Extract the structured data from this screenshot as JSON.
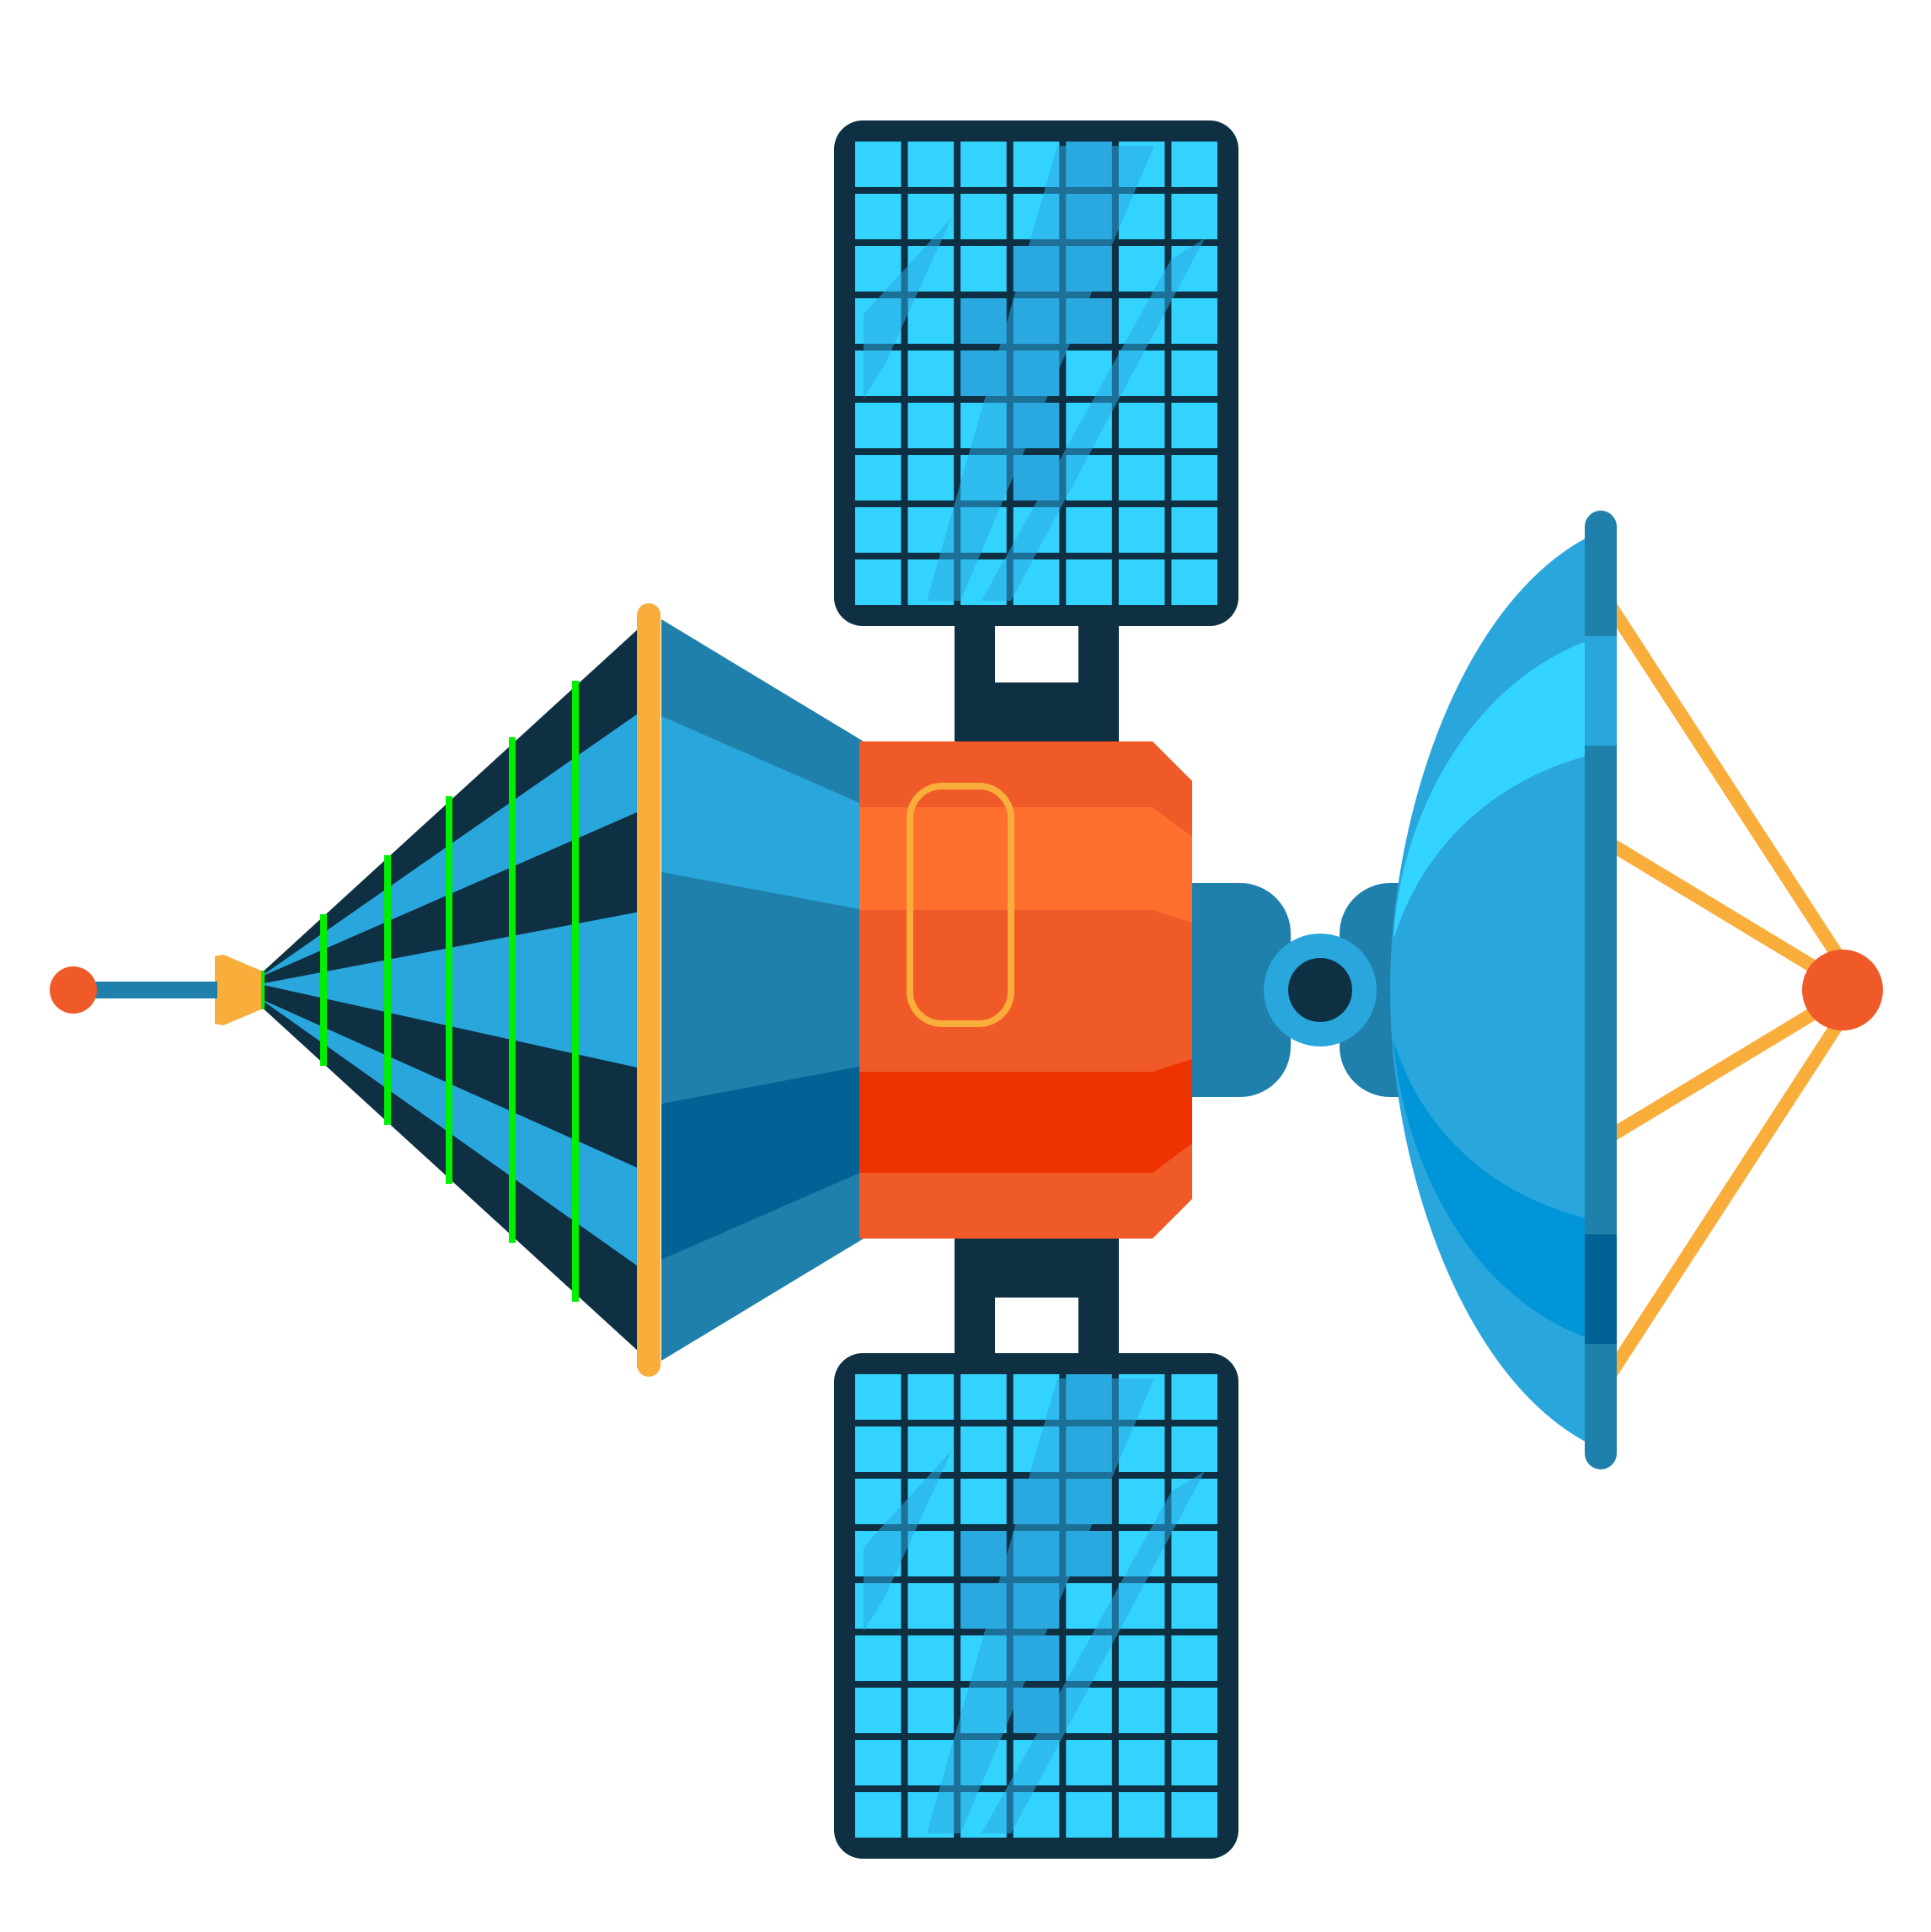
{
  "scene": {
    "subject": "satellite-illustration",
    "background": "#ffffff",
    "panel_grid": {
      "rows": 9,
      "cols": 7
    }
  },
  "colors": {
    "navy": "#0e3042",
    "cell": "#33d3ff",
    "cell_shade": "#2aa8e0",
    "steel": "#2080ac",
    "sky": "#29a6dc",
    "deep": "#006295",
    "bright_blue": "#0095d8",
    "cyan": "#33d3ff",
    "orange": "#f05a28",
    "orange_light": "#ff6f2e",
    "red_orange": "#ee3300",
    "amber": "#f9ad3a",
    "green": "#00f000"
  },
  "icons": [
    "solar-panel-icon",
    "satellite-dish-icon",
    "antenna-cone-icon",
    "hatch-door-icon",
    "docking-port-icon"
  ]
}
